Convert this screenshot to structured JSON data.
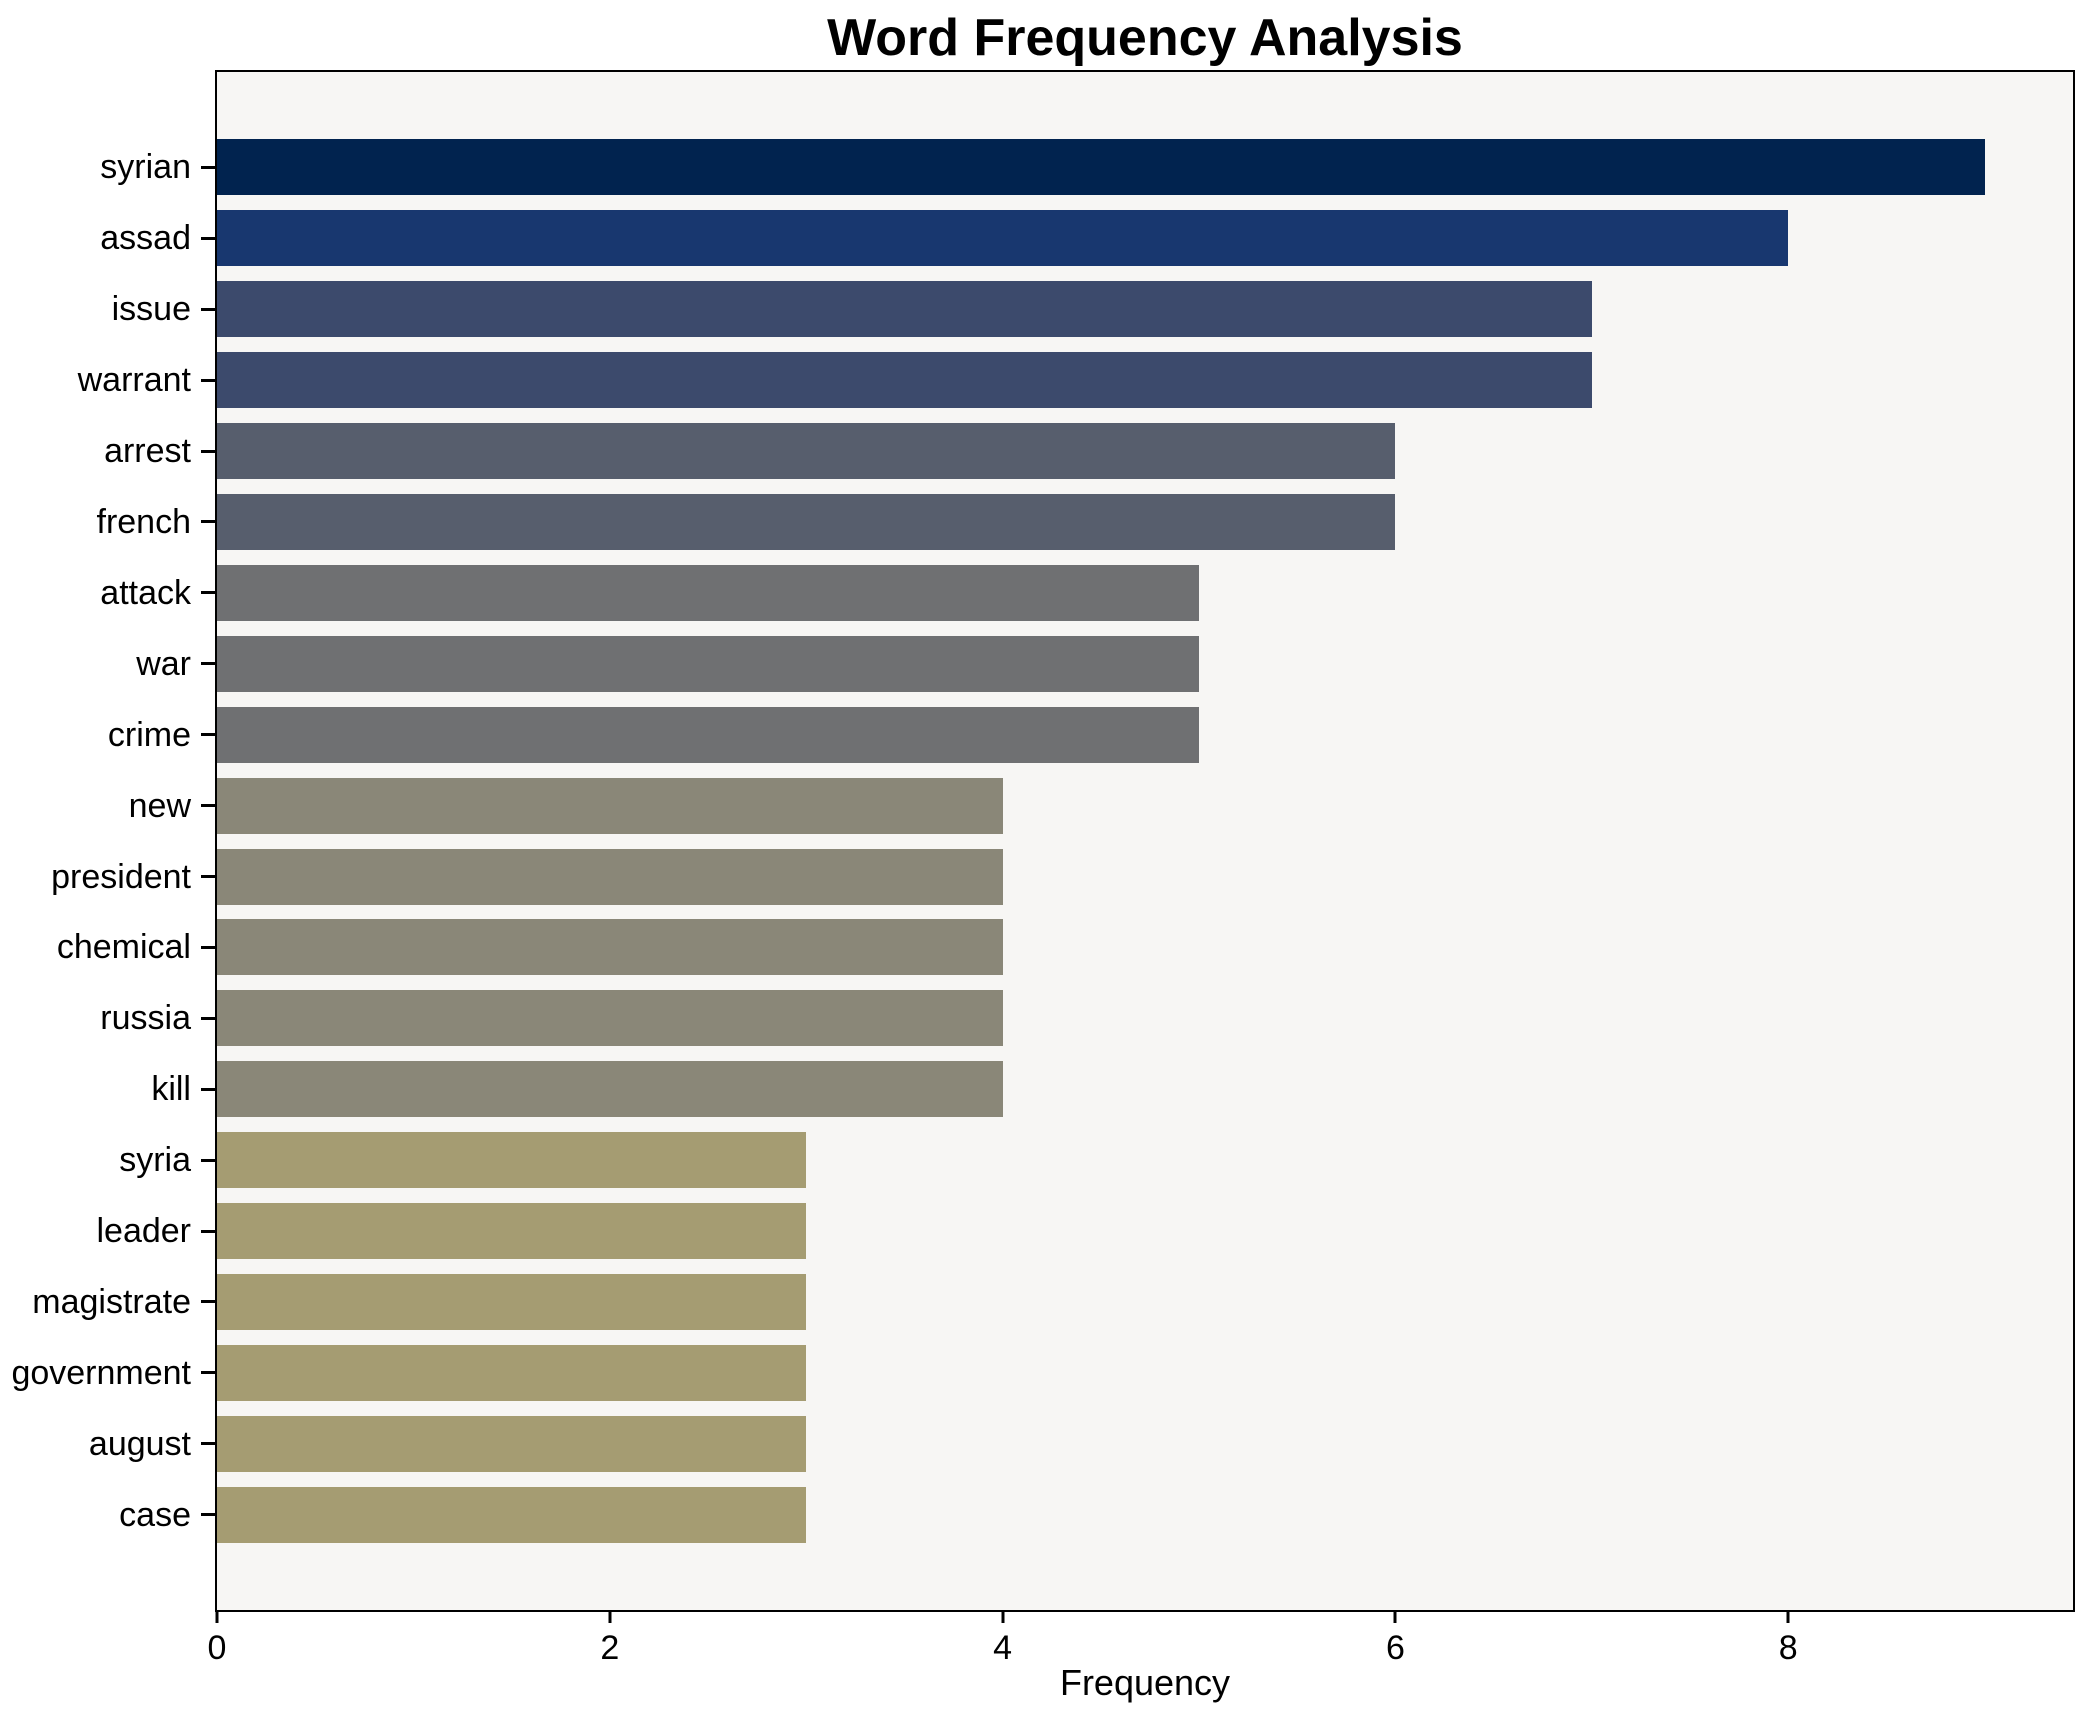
{
  "title": "Word Frequency Analysis",
  "chart_data": {
    "type": "bar",
    "orientation": "horizontal",
    "title": "Word Frequency Analysis",
    "xlabel": "Frequency",
    "ylabel": "",
    "categories": [
      "syrian",
      "assad",
      "issue",
      "warrant",
      "arrest",
      "french",
      "attack",
      "war",
      "crime",
      "new",
      "president",
      "chemical",
      "russia",
      "kill",
      "syria",
      "leader",
      "magistrate",
      "government",
      "august",
      "case"
    ],
    "values": [
      9,
      8,
      7,
      7,
      6,
      6,
      5,
      5,
      5,
      4,
      4,
      4,
      4,
      4,
      3,
      3,
      3,
      3,
      3,
      3
    ],
    "bar_colors": [
      "#01234f",
      "#18376f",
      "#3c4a6c",
      "#3c4a6c",
      "#575e6d",
      "#575e6d",
      "#6f7072",
      "#6f7072",
      "#6f7072",
      "#8a8778",
      "#8a8778",
      "#8a8778",
      "#8a8778",
      "#8a8778",
      "#a59c72",
      "#a59c72",
      "#a59c72",
      "#a59c72",
      "#a59c72",
      "#a59c72"
    ],
    "xlim": [
      0,
      9.45
    ],
    "xticks": [
      0,
      2,
      4,
      6,
      8
    ],
    "grid": false,
    "legend": "none",
    "plot_background": "#f7f6f4",
    "figure_background": "#ffffff",
    "spine_color": "#000000",
    "text_color": "#000000"
  }
}
